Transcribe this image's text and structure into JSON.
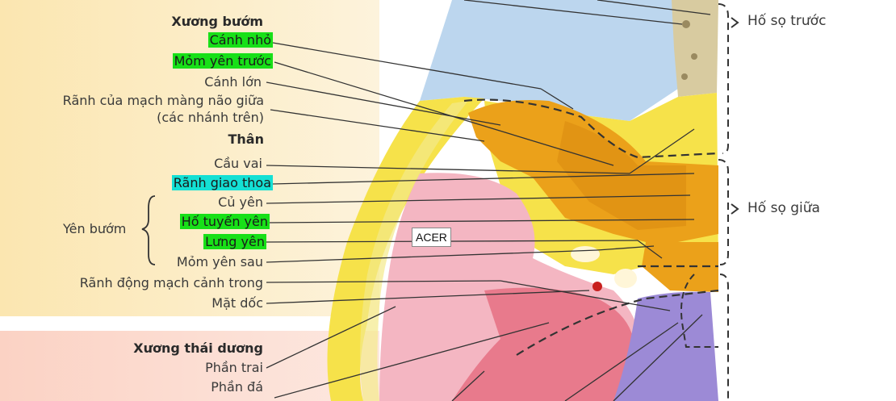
{
  "labels": {
    "xuong_buom": "Xương bướm",
    "canh_nho": "Cánh nhỏ",
    "mom_yen_truoc": "Mỏm yên trước",
    "canh_lon": "Cánh lớn",
    "ranh_mach_1": "Rãnh của mạch màng não giữa",
    "ranh_mach_2": "(các nhánh trên)",
    "than": "Thân",
    "cau_vai": "Cầu vai",
    "ranh_giao_thoa": "Rãnh giao thoa",
    "cu_yen": "Củ yên",
    "yen_buom": "Yên bướm",
    "ho_tuyen_yen": "Hố tuyến yên",
    "lung_yen": "Lưng yên",
    "mom_yen_sau": "Mỏm yên sau",
    "ranh_dong_mach": "Rãnh động mạch cảnh trong",
    "mat_doc": "Mặt dốc",
    "xuong_thai_duong": "Xương thái dương",
    "phan_trai": "Phần trai",
    "phan_da": "Phần đá"
  },
  "braces": {
    "ho_so_truoc": "Hố sọ trước",
    "ho_so_giua": "Hố sọ giữa"
  },
  "watermark": "ACER",
  "colors": {
    "highlight_green": "#18e018",
    "highlight_cyan": "#14e0d4",
    "frontal_blue": "#bcd6ee",
    "sphenoid_orange": "#eba11a",
    "sphenoid_yellow": "#f6e24a",
    "temporal_pink": "#f4b6c2",
    "occipital_purple": "#9c8ad6"
  }
}
